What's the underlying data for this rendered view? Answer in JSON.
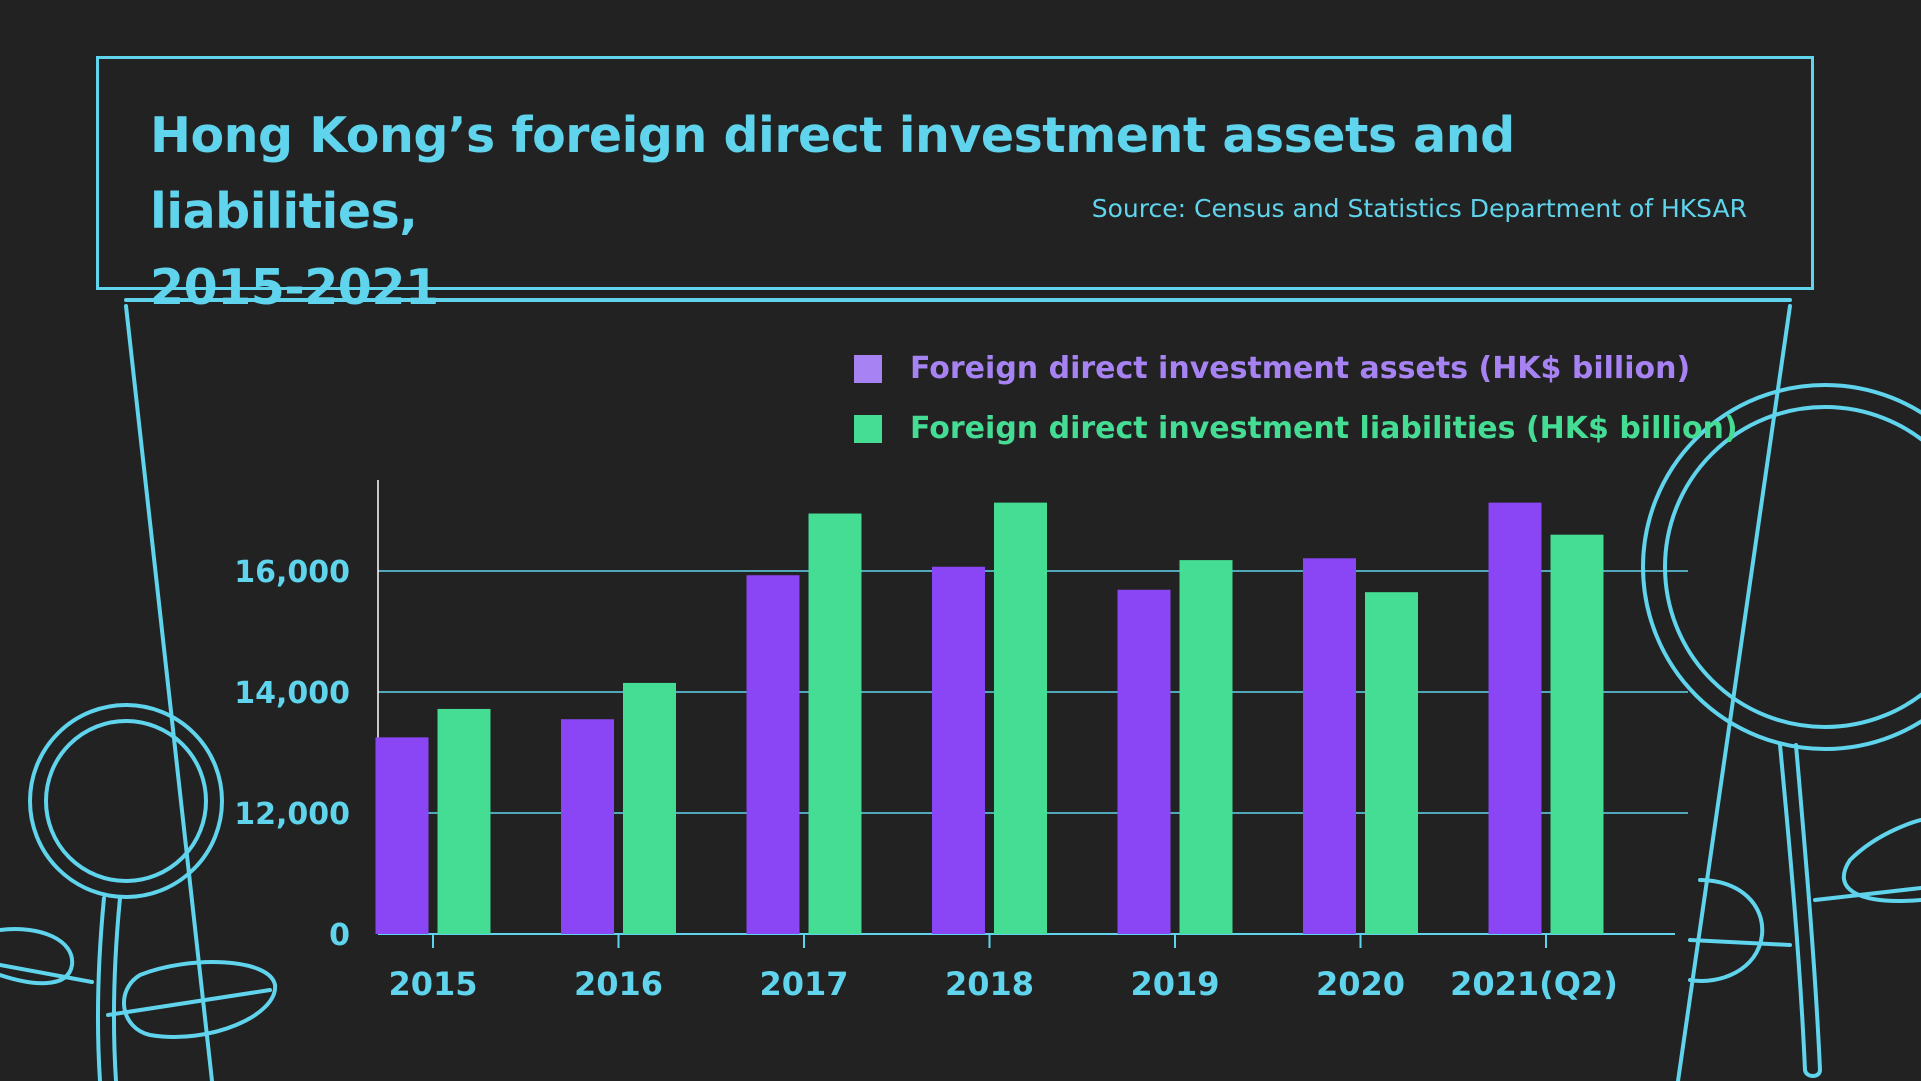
{
  "header": {
    "title_line1": "Hong Kong’s foreign direct investment assets and liabilities,",
    "title_line2": "2015-2021",
    "source": "Source: Census and Statistics Department of HKSAR"
  },
  "colors": {
    "background": "#222222",
    "outline": "#5fd4ec",
    "assets": "#8a46f5",
    "liabilities": "#45dc94",
    "legend_assets": "#a682f2"
  },
  "icons": [
    "dollar-coin-icon",
    "leaf-icon",
    "plant-pot-outline"
  ],
  "chart_data": {
    "type": "bar",
    "categories": [
      "2015",
      "2016",
      "2017",
      "2018",
      "2019",
      "2020",
      "2021(Q2)"
    ],
    "series": [
      {
        "name": "Foreign direct investment assets (HK$ billion)",
        "values": [
          13250,
          13550,
          15930,
          16070,
          15690,
          16210,
          17130
        ]
      },
      {
        "name": "Foreign direct investment liabilities (HK$ billion)",
        "values": [
          13720,
          14150,
          16950,
          17130,
          16180,
          15650,
          16600
        ]
      }
    ],
    "yticks": [
      "0",
      "12,000",
      "14,000",
      "16,000"
    ],
    "ylim": [
      10500,
      17500
    ],
    "axis_break": "0 shown at baseline; axis truncated between 0 and 12,000",
    "grid": true,
    "legend_position": "top-right"
  }
}
